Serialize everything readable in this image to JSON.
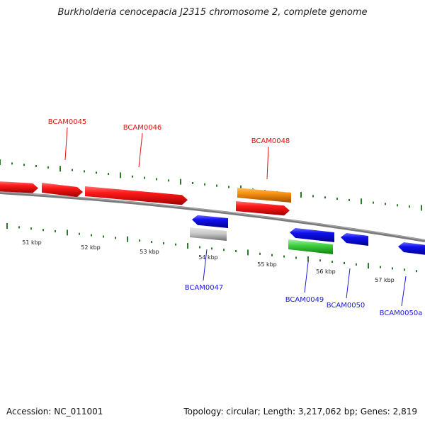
{
  "title": "Burkholderia cenocepacia J2315 chromosome 2, complete genome",
  "footer": {
    "accession": "Accession: NC_011001",
    "summary": "Topology: circular; Length: 3,217,062 bp; Genes: 2,819"
  },
  "scale_labels": [
    "51 kbp",
    "52 kbp",
    "53 kbp",
    "54 kbp",
    "55 kbp",
    "56 kbp",
    "57 kbp"
  ],
  "colors": {
    "forward": "#e81010",
    "reverse": "#1a1ae0",
    "highlight_orange": "#f08a10",
    "highlight_green": "#3cc83c",
    "neutral_grey": "#c0c0c0",
    "tick": "#2a7a2a",
    "backbone": "#808080"
  },
  "genes": [
    {
      "name": "BCAM0045",
      "strand": "forward",
      "color": "forward"
    },
    {
      "name": "BCAM0046",
      "strand": "forward",
      "color": "forward"
    },
    {
      "name": "BCAM0047",
      "strand": "reverse",
      "color": "reverse"
    },
    {
      "name": "BCAM0048",
      "strand": "forward",
      "color": "forward"
    },
    {
      "name": "BCAM0049",
      "strand": "reverse",
      "color": "reverse"
    },
    {
      "name": "BCAM0050",
      "strand": "reverse",
      "color": "reverse"
    },
    {
      "name": "BCAM0050a",
      "strand": "reverse",
      "color": "reverse"
    }
  ]
}
